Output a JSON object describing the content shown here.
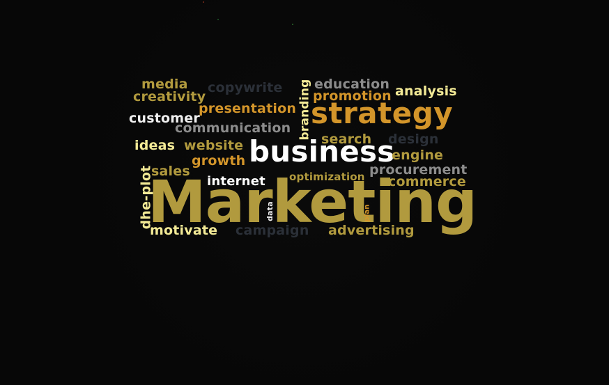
{
  "words": {
    "media": "media",
    "copywrite": "copywrite",
    "branding": "branding",
    "education": "education",
    "creativity": "creativity",
    "promotion": "promotion",
    "analysis": "analysis",
    "presentation": "presentation",
    "customer": "customer",
    "strategy": "strategy",
    "communication": "communication",
    "search": "search",
    "design": "design",
    "ideas": "ideas",
    "website": "website",
    "business": "business",
    "engine": "engine",
    "growth": "growth",
    "sales": "sales",
    "procurement": "procurement",
    "dhe_plot": "dhe-plot",
    "internet": "internet",
    "optimization": "optimization",
    "commerce": "commerce",
    "marketing": "Marketing",
    "data": "data",
    "plan": "plan",
    "motivate": "motivate",
    "campaign": "campaign",
    "advertising": "advertising"
  },
  "colors": {
    "background": "#070707",
    "gold": "#b19a3e",
    "orange": "#d3952a",
    "cream": "#f3ea96",
    "white": "#ffffff",
    "gray": "#8c8c8c",
    "dark": "#2b3038"
  }
}
